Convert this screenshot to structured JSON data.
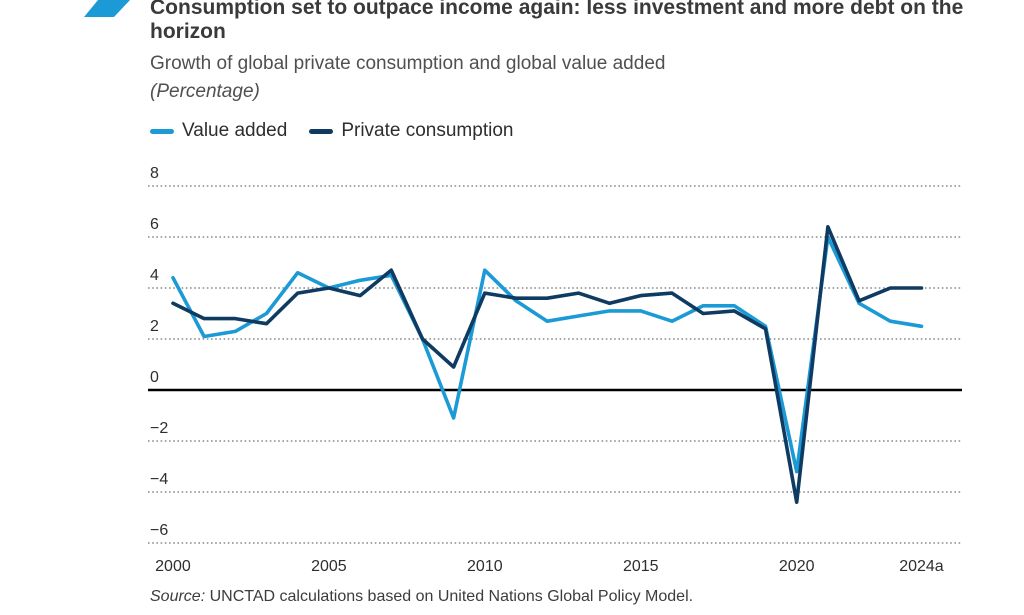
{
  "header": {
    "title": "Consumption set to outpace income again: less investment and more debt on the horizon",
    "subtitle": "Growth of global private consumption and global value added",
    "unit": "(Percentage)"
  },
  "colors": {
    "value_added": "#1c9ad6",
    "private_consumption": "#0f3b63",
    "accent": "#1c9ad6"
  },
  "chart_data": {
    "type": "line",
    "title": "Consumption set to outpace income again: less investment and more debt on the horizon",
    "subtitle": "Growth of global private consumption and global value added",
    "ylabel": "(Percentage)",
    "xlabel": "",
    "x": [
      2000,
      2001,
      2002,
      2003,
      2004,
      2005,
      2006,
      2007,
      2008,
      2009,
      2010,
      2011,
      2012,
      2013,
      2014,
      2015,
      2016,
      2017,
      2018,
      2019,
      2020,
      2021,
      2022,
      2023,
      2024
    ],
    "xlim": [
      1999.2,
      2025.3
    ],
    "ylim": [
      -6,
      8
    ],
    "yticks": [
      -6,
      -4,
      -2,
      0,
      2,
      4,
      6,
      8
    ],
    "ytick_labels": [
      "−6",
      "−4",
      "−2",
      "0",
      "2",
      "4",
      "6",
      "8"
    ],
    "xticks": [
      2000,
      2005,
      2010,
      2015,
      2020,
      2024
    ],
    "xtick_labels": [
      "2000",
      "2005",
      "2010",
      "2015",
      "2020",
      "2024a"
    ],
    "grid": "horizontal dotted",
    "legend": "top-left",
    "series": [
      {
        "name": "Value added",
        "color_key": "value_added",
        "values": [
          4.4,
          2.1,
          2.3,
          3.0,
          4.6,
          4.0,
          4.3,
          4.5,
          2.0,
          -1.1,
          4.7,
          3.5,
          2.7,
          2.9,
          3.1,
          3.1,
          2.7,
          3.3,
          3.3,
          2.5,
          -3.2,
          6.0,
          3.4,
          2.7,
          2.5
        ]
      },
      {
        "name": "Private consumption",
        "color_key": "private_consumption",
        "values": [
          3.4,
          2.8,
          2.8,
          2.6,
          3.8,
          4.0,
          3.7,
          4.7,
          2.0,
          0.9,
          3.8,
          3.6,
          3.6,
          3.8,
          3.4,
          3.7,
          3.8,
          3.0,
          3.1,
          2.4,
          -4.4,
          6.4,
          3.5,
          4.0,
          4.0
        ]
      }
    ]
  },
  "source": {
    "label": "Source:",
    "text": " UNCTAD calculations based on United Nations Global Policy Model."
  }
}
